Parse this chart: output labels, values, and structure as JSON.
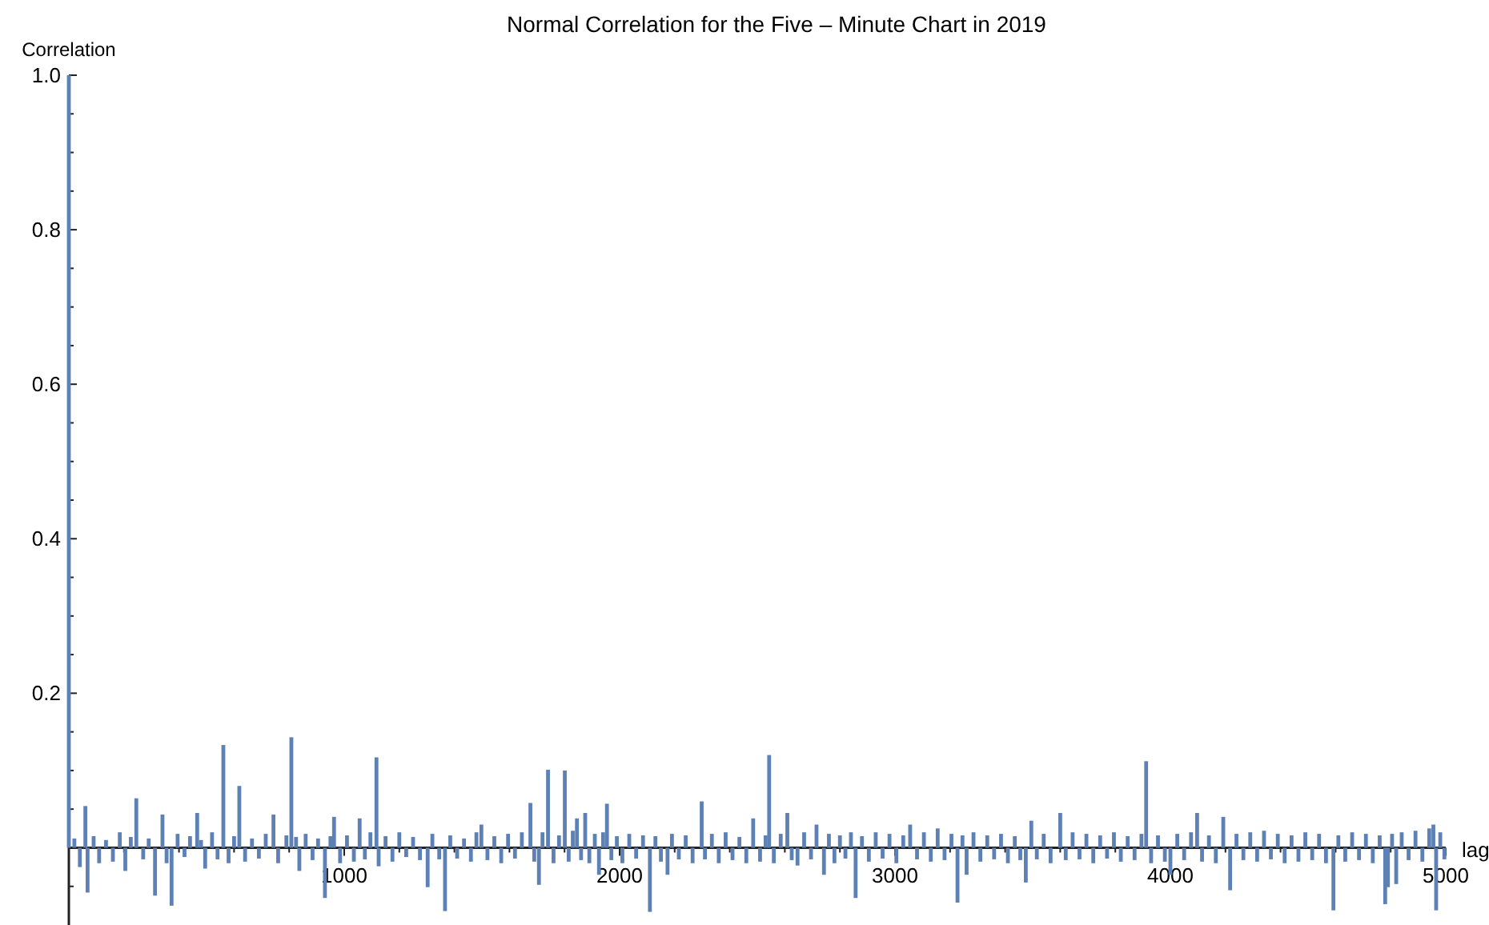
{
  "chart_data": {
    "type": "bar",
    "title": "Normal Correlation for the Five – Minute Chart in 2019",
    "xlabel": "lag",
    "ylabel": "Correlation",
    "xlim": [
      0,
      5000
    ],
    "ylim": [
      -0.1,
      1.0
    ],
    "xticks": [
      {
        "value": 200,
        "label": null
      },
      {
        "value": 400,
        "label": null
      },
      {
        "value": 600,
        "label": null
      },
      {
        "value": 800,
        "label": null
      },
      1000,
      {
        "value": 1200,
        "label": null
      },
      {
        "value": 1400,
        "label": null
      },
      {
        "value": 1600,
        "label": null
      },
      {
        "value": 1800,
        "label": null
      },
      2000,
      {
        "value": 2200,
        "label": null
      },
      {
        "value": 2400,
        "label": null
      },
      {
        "value": 2600,
        "label": null
      },
      {
        "value": 2800,
        "label": null
      },
      3000,
      {
        "value": 3200,
        "label": null
      },
      {
        "value": 3400,
        "label": null
      },
      {
        "value": 3600,
        "label": null
      },
      {
        "value": 3800,
        "label": null
      },
      4000,
      {
        "value": 4200,
        "label": null
      },
      {
        "value": 4400,
        "label": null
      },
      {
        "value": 4600,
        "label": null
      },
      {
        "value": 4800,
        "label": null
      },
      5000
    ],
    "yticks": [
      {
        "value": -0.05,
        "label": null
      },
      {
        "value": 0.05,
        "label": null
      },
      {
        "value": 0.1,
        "label": null
      },
      {
        "value": 0.15,
        "label": null
      },
      0.2,
      {
        "value": 0.25,
        "label": null
      },
      {
        "value": 0.3,
        "label": null
      },
      {
        "value": 0.35,
        "label": null
      },
      0.4,
      {
        "value": 0.45,
        "label": null
      },
      {
        "value": 0.5,
        "label": null
      },
      {
        "value": 0.55,
        "label": null
      },
      0.6,
      {
        "value": 0.65,
        "label": null
      },
      {
        "value": 0.7,
        "label": null
      },
      {
        "value": 0.75,
        "label": null
      },
      0.8,
      {
        "value": 0.85,
        "label": null
      },
      {
        "value": 0.9,
        "label": null
      },
      {
        "value": 0.95,
        "label": null
      },
      {
        "value": 1.0,
        "label": "1.0"
      }
    ],
    "x": [
      0,
      20,
      40,
      60,
      68,
      90,
      110,
      135,
      160,
      185,
      205,
      225,
      245,
      270,
      290,
      313,
      340,
      355,
      373,
      395,
      420,
      440,
      466,
      480,
      495,
      520,
      540,
      561,
      580,
      600,
      619,
      640,
      665,
      690,
      715,
      743,
      760,
      790,
      808,
      825,
      837,
      860,
      885,
      905,
      930,
      950,
      963,
      985,
      1010,
      1035,
      1056,
      1075,
      1095,
      1117,
      1125,
      1150,
      1175,
      1200,
      1225,
      1250,
      1275,
      1303,
      1320,
      1345,
      1366,
      1385,
      1410,
      1435,
      1460,
      1480,
      1498,
      1520,
      1545,
      1570,
      1595,
      1620,
      1645,
      1676,
      1690,
      1707,
      1720,
      1740,
      1760,
      1780,
      1801,
      1815,
      1830,
      1845,
      1860,
      1875,
      1890,
      1910,
      1925,
      1940,
      1954,
      1970,
      1990,
      2010,
      2035,
      2060,
      2085,
      2110,
      2130,
      2150,
      2174,
      2190,
      2215,
      2240,
      2265,
      2298,
      2310,
      2335,
      2360,
      2385,
      2410,
      2435,
      2460,
      2485,
      2510,
      2530,
      2543,
      2560,
      2585,
      2609,
      2625,
      2646,
      2670,
      2695,
      2715,
      2742,
      2760,
      2780,
      2800,
      2820,
      2840,
      2857,
      2880,
      2905,
      2930,
      2955,
      2980,
      3005,
      3030,
      3055,
      3080,
      3105,
      3130,
      3155,
      3180,
      3205,
      3227,
      3245,
      3260,
      3285,
      3310,
      3335,
      3360,
      3385,
      3410,
      3435,
      3455,
      3475,
      3495,
      3515,
      3540,
      3565,
      3600,
      3620,
      3645,
      3670,
      3695,
      3720,
      3745,
      3770,
      3795,
      3820,
      3845,
      3870,
      3895,
      3912,
      3930,
      3955,
      3980,
      4000,
      4025,
      4050,
      4075,
      4097,
      4115,
      4140,
      4165,
      4192,
      4217,
      4240,
      4265,
      4290,
      4315,
      4340,
      4365,
      4390,
      4415,
      4440,
      4465,
      4490,
      4515,
      4540,
      4565,
      4592,
      4610,
      4635,
      4660,
      4685,
      4710,
      4735,
      4760,
      4780,
      4790,
      4805,
      4820,
      4840,
      4865,
      4890,
      4915,
      4940,
      4955,
      4965,
      4980,
      4995
    ],
    "series": [
      {
        "color": "#5e81b5",
        "values": [
          1.0,
          0.012,
          -0.025,
          0.054,
          -0.058,
          0.015,
          -0.02,
          0.01,
          -0.018,
          0.02,
          -0.03,
          0.014,
          0.064,
          -0.015,
          0.012,
          -0.062,
          0.043,
          -0.02,
          -0.075,
          0.018,
          -0.012,
          0.015,
          0.045,
          0.01,
          -0.027,
          0.02,
          -0.015,
          0.133,
          -0.02,
          0.015,
          0.08,
          -0.018,
          0.012,
          -0.014,
          0.018,
          0.043,
          -0.02,
          0.016,
          0.143,
          0.014,
          -0.03,
          0.018,
          -0.016,
          0.012,
          -0.065,
          0.015,
          0.04,
          -0.02,
          0.016,
          -0.018,
          0.038,
          -0.015,
          0.02,
          0.117,
          -0.024,
          0.015,
          -0.018,
          0.02,
          -0.012,
          0.014,
          -0.016,
          -0.051,
          0.018,
          -0.015,
          -0.082,
          0.016,
          -0.014,
          0.012,
          -0.018,
          0.02,
          0.03,
          -0.016,
          0.015,
          -0.02,
          0.018,
          -0.014,
          0.02,
          0.058,
          -0.018,
          -0.048,
          0.02,
          0.101,
          -0.02,
          0.016,
          0.1,
          -0.018,
          0.022,
          0.038,
          -0.016,
          0.045,
          -0.02,
          0.018,
          -0.035,
          0.02,
          0.057,
          -0.016,
          0.015,
          -0.02,
          0.018,
          -0.014,
          0.016,
          -0.083,
          0.015,
          -0.018,
          -0.035,
          0.018,
          -0.015,
          0.016,
          -0.02,
          0.06,
          -0.015,
          0.018,
          -0.02,
          0.02,
          -0.016,
          0.014,
          -0.02,
          0.038,
          -0.018,
          0.016,
          0.12,
          -0.02,
          0.018,
          0.045,
          -0.016,
          -0.023,
          0.02,
          -0.015,
          0.03,
          -0.035,
          0.018,
          -0.02,
          0.016,
          -0.014,
          0.02,
          -0.065,
          0.015,
          -0.018,
          0.02,
          -0.014,
          0.018,
          -0.02,
          0.016,
          0.03,
          -0.015,
          0.02,
          -0.018,
          0.025,
          -0.016,
          0.018,
          -0.071,
          0.016,
          -0.035,
          0.02,
          -0.018,
          0.016,
          -0.015,
          0.018,
          -0.02,
          0.015,
          -0.016,
          -0.045,
          0.035,
          -0.015,
          0.018,
          -0.02,
          0.045,
          -0.016,
          0.02,
          -0.015,
          0.018,
          -0.02,
          0.016,
          -0.014,
          0.02,
          -0.018,
          0.015,
          -0.016,
          0.018,
          0.112,
          -0.02,
          0.016,
          -0.018,
          -0.035,
          0.018,
          -0.016,
          0.02,
          0.045,
          -0.018,
          0.016,
          -0.02,
          0.04,
          -0.055,
          0.018,
          -0.016,
          0.02,
          -0.018,
          0.022,
          -0.015,
          0.018,
          -0.02,
          0.016,
          -0.018,
          0.02,
          -0.016,
          0.018,
          -0.02,
          -0.081,
          0.016,
          -0.018,
          0.02,
          -0.016,
          0.018,
          -0.02,
          0.016,
          -0.073,
          -0.051,
          0.018,
          -0.047,
          0.02,
          -0.016,
          0.022,
          -0.018,
          0.025,
          0.03,
          -0.081,
          0.02,
          -0.015
        ]
      }
    ]
  }
}
